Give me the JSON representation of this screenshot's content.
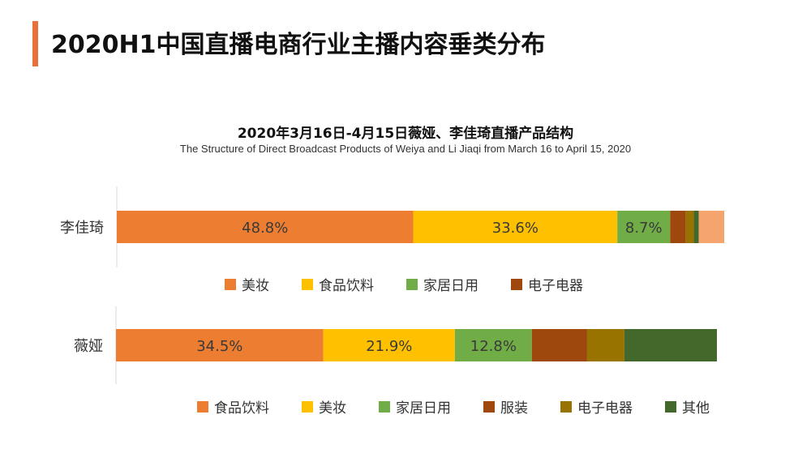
{
  "header": {
    "title": "2020H1中国直播电商行业主播内容垂类分布",
    "accent_color": "#e8703a"
  },
  "chart_data": [
    {
      "type": "bar",
      "orientation": "horizontal",
      "stacked": true,
      "title": "2020年3月16日-4月15日薇娅、李佳琦直播产品结构",
      "subtitle": "The Structure of Direct Broadcast Products of Weiya and Li Jiaqi from March 16 to April 15, 2020",
      "category": "李佳琦",
      "legend_position": "bottom",
      "series": [
        {
          "name": "美妆",
          "value": 48.8,
          "label": "48.8%",
          "color": "#ed7d31"
        },
        {
          "name": "食品饮料",
          "value": 33.6,
          "label": "33.6%",
          "color": "#ffc000"
        },
        {
          "name": "家居日用",
          "value": 8.7,
          "label": "8.7%",
          "color": "#70ad47"
        },
        {
          "name": "电子电器",
          "value": 2.6,
          "label": "",
          "color": "#9e480e"
        },
        {
          "value": 1.3,
          "label": "",
          "color": "#997300"
        },
        {
          "value": 0.8,
          "label": "",
          "color": "#43682b"
        },
        {
          "value": 4.2,
          "label": "",
          "color": "#f4a46c"
        }
      ]
    },
    {
      "type": "bar",
      "orientation": "horizontal",
      "stacked": true,
      "category": "薇娅",
      "legend_position": "bottom",
      "series": [
        {
          "name": "食品饮料",
          "value": 34.5,
          "label": "34.5%",
          "color": "#ed7d31"
        },
        {
          "name": "美妆",
          "value": 21.9,
          "label": "21.9%",
          "color": "#ffc000"
        },
        {
          "name": "家居日用",
          "value": 12.8,
          "label": "12.8%",
          "color": "#70ad47"
        },
        {
          "name": "服装",
          "value": 9.2,
          "label": "",
          "color": "#9e480e"
        },
        {
          "name": "电子电器",
          "value": 6.2,
          "label": "",
          "color": "#997300"
        },
        {
          "name": "其他",
          "value": 15.4,
          "label": "",
          "color": "#43682b"
        }
      ]
    }
  ]
}
